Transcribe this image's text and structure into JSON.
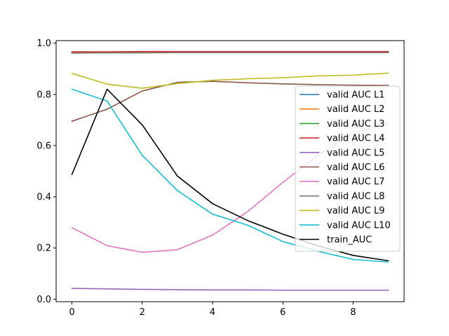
{
  "chart_data": {
    "type": "line",
    "title": "",
    "xlabel": "",
    "ylabel": "",
    "xlim": [
      -0.45,
      9.45
    ],
    "ylim": [
      -0.01,
      1.01
    ],
    "xticks": [
      0,
      2,
      4,
      6,
      8
    ],
    "yticks": [
      0.0,
      0.2,
      0.4,
      0.6,
      0.8,
      1.0
    ],
    "xtick_labels": [
      "0",
      "2",
      "4",
      "6",
      "8"
    ],
    "ytick_labels": [
      "0.0",
      "0.2",
      "0.4",
      "0.6",
      "0.8",
      "1.0"
    ],
    "grid": false,
    "legend_position": "center-right",
    "x": [
      0,
      1,
      2,
      3,
      4,
      5,
      6,
      7,
      8,
      9
    ],
    "series": [
      {
        "name": "valid AUC L1",
        "color": "#1f77b4",
        "values": [
          0.963,
          0.963,
          0.964,
          0.964,
          0.964,
          0.964,
          0.964,
          0.964,
          0.964,
          0.964
        ]
      },
      {
        "name": "valid AUC L2",
        "color": "#ff7f0e",
        "values": [
          0.964,
          0.964,
          0.965,
          0.965,
          0.965,
          0.965,
          0.965,
          0.965,
          0.965,
          0.965
        ]
      },
      {
        "name": "valid AUC L3",
        "color": "#2ca02c",
        "values": [
          0.965,
          0.965,
          0.966,
          0.966,
          0.966,
          0.966,
          0.966,
          0.966,
          0.966,
          0.966
        ]
      },
      {
        "name": "valid AUC L4",
        "color": "#d62728",
        "values": [
          0.966,
          0.966,
          0.967,
          0.967,
          0.967,
          0.967,
          0.967,
          0.967,
          0.967,
          0.967
        ]
      },
      {
        "name": "valid AUC L5",
        "color": "#9467bd",
        "values": [
          0.042,
          0.04,
          0.038,
          0.037,
          0.036,
          0.036,
          0.035,
          0.035,
          0.035,
          0.035
        ]
      },
      {
        "name": "valid AUC L6",
        "color": "#8c564b",
        "values": [
          0.695,
          0.742,
          0.813,
          0.847,
          0.851,
          0.845,
          0.841,
          0.838,
          0.836,
          0.835
        ]
      },
      {
        "name": "valid AUC L7",
        "color": "#e377c2",
        "values": [
          0.279,
          0.209,
          0.183,
          0.193,
          0.25,
          0.342,
          0.456,
          0.562,
          0.648,
          0.69
        ]
      },
      {
        "name": "valid AUC L8",
        "color": "#7f7f7f",
        "values": [
          0.961,
          0.962,
          0.962,
          0.963,
          0.963,
          0.963,
          0.963,
          0.963,
          0.963,
          0.963
        ]
      },
      {
        "name": "valid AUC L9",
        "color": "#bcbd22",
        "values": [
          0.882,
          0.84,
          0.824,
          0.842,
          0.855,
          0.861,
          0.865,
          0.872,
          0.875,
          0.883
        ]
      },
      {
        "name": "valid AUC L10",
        "color": "#17becf",
        "values": [
          0.82,
          0.774,
          0.562,
          0.424,
          0.332,
          0.289,
          0.225,
          0.187,
          0.155,
          0.145
        ]
      },
      {
        "name": "train_AUC",
        "color": "#000000",
        "values": [
          0.487,
          0.82,
          0.681,
          0.481,
          0.373,
          0.307,
          0.254,
          0.208,
          0.171,
          0.15
        ]
      }
    ]
  }
}
